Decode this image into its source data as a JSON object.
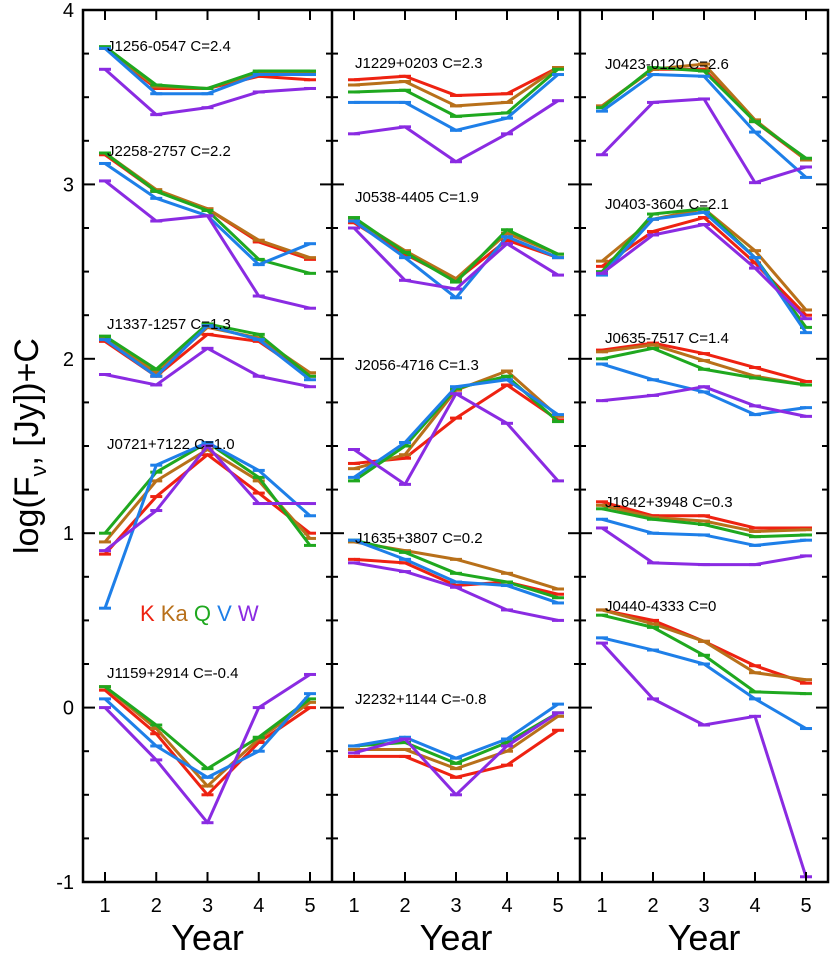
{
  "chart_data": {
    "type": "line",
    "ylabel": "log(F",
    "ylabel_sub": "ν",
    "ylabel_tail": ", [Jy])+C",
    "xlabel": "Year",
    "ylim": [
      -1,
      4
    ],
    "yticks": [
      "-1",
      "0",
      "1",
      "2",
      "3",
      "4"
    ],
    "xticks": [
      "1",
      "2",
      "3",
      "4",
      "5"
    ],
    "band_legend": [
      {
        "label": "K",
        "color": "#ee2211"
      },
      {
        "label": "Ka",
        "color": "#b8701a"
      },
      {
        "label": "Q",
        "color": "#1fa81f"
      },
      {
        "label": "V",
        "color": "#1e7fe8"
      },
      {
        "label": "W",
        "color": "#8a2be2"
      }
    ],
    "panels": [
      {
        "sources": [
          {
            "label": "J1256-0547 C=2.4",
            "series": [
              {
                "band": "K",
                "values": [
                  3.78,
                  3.55,
                  3.55,
                  3.62,
                  3.6
                ]
              },
              {
                "band": "Ka",
                "values": [
                  3.78,
                  3.56,
                  3.55,
                  3.64,
                  3.64
                ]
              },
              {
                "band": "Q",
                "values": [
                  3.79,
                  3.57,
                  3.55,
                  3.65,
                  3.65
                ]
              },
              {
                "band": "V",
                "values": [
                  3.78,
                  3.52,
                  3.52,
                  3.63,
                  3.63
                ]
              },
              {
                "band": "W",
                "values": [
                  3.66,
                  3.4,
                  3.44,
                  3.53,
                  3.55
                ]
              }
            ]
          },
          {
            "label": "J2258-2757 C=2.2",
            "series": [
              {
                "band": "K",
                "values": [
                  3.17,
                  2.96,
                  2.86,
                  2.67,
                  2.57
                ]
              },
              {
                "band": "Ka",
                "values": [
                  3.18,
                  2.97,
                  2.86,
                  2.68,
                  2.58
                ]
              },
              {
                "band": "Q",
                "values": [
                  3.18,
                  2.96,
                  2.85,
                  2.57,
                  2.49
                ]
              },
              {
                "band": "V",
                "values": [
                  3.12,
                  2.92,
                  2.82,
                  2.54,
                  2.66
                ]
              },
              {
                "band": "W",
                "values": [
                  3.02,
                  2.79,
                  2.82,
                  2.36,
                  2.29
                ]
              }
            ]
          },
          {
            "label": "J1337-1257 C=1.3",
            "series": [
              {
                "band": "K",
                "values": [
                  2.1,
                  1.9,
                  2.14,
                  2.1,
                  1.9
                ]
              },
              {
                "band": "Ka",
                "values": [
                  2.12,
                  1.92,
                  2.18,
                  2.12,
                  1.92
                ]
              },
              {
                "band": "Q",
                "values": [
                  2.13,
                  1.94,
                  2.2,
                  2.14,
                  1.9
                ]
              },
              {
                "band": "V",
                "values": [
                  2.11,
                  1.9,
                  2.19,
                  2.11,
                  1.88
                ]
              },
              {
                "band": "W",
                "values": [
                  1.91,
                  1.85,
                  2.06,
                  1.9,
                  1.84
                ]
              }
            ]
          },
          {
            "label": "J0721+7122 C=1.0",
            "series": [
              {
                "band": "K",
                "values": [
                  0.88,
                  1.21,
                  1.45,
                  1.23,
                  1.0
                ]
              },
              {
                "band": "Ka",
                "values": [
                  0.95,
                  1.3,
                  1.48,
                  1.3,
                  0.97
                ]
              },
              {
                "band": "Q",
                "values": [
                  1.0,
                  1.35,
                  1.52,
                  1.32,
                  0.93
                ]
              },
              {
                "band": "V",
                "values": [
                  0.57,
                  1.39,
                  1.52,
                  1.36,
                  1.1
                ]
              },
              {
                "band": "W",
                "values": [
                  0.9,
                  1.13,
                  1.5,
                  1.17,
                  1.17
                ]
              }
            ]
          },
          {
            "label": "J1159+2914 C=-0.4",
            "series": [
              {
                "band": "K",
                "values": [
                  0.1,
                  -0.15,
                  -0.5,
                  -0.2,
                  0.0
                ]
              },
              {
                "band": "Ka",
                "values": [
                  0.12,
                  -0.12,
                  -0.45,
                  -0.18,
                  0.03
                ]
              },
              {
                "band": "Q",
                "values": [
                  0.12,
                  -0.1,
                  -0.35,
                  -0.17,
                  0.05
                ]
              },
              {
                "band": "V",
                "values": [
                  0.05,
                  -0.22,
                  -0.4,
                  -0.25,
                  0.08
                ]
              },
              {
                "band": "W",
                "values": [
                  0.0,
                  -0.3,
                  -0.66,
                  0.0,
                  0.19
                ]
              }
            ]
          }
        ]
      },
      {
        "sources": [
          {
            "label": "J1229+0203 C=2.3",
            "series": [
              {
                "band": "K",
                "values": [
                  3.6,
                  3.62,
                  3.51,
                  3.52,
                  3.67
                ]
              },
              {
                "band": "Ka",
                "values": [
                  3.57,
                  3.59,
                  3.45,
                  3.47,
                  3.67
                ]
              },
              {
                "band": "Q",
                "values": [
                  3.53,
                  3.54,
                  3.39,
                  3.41,
                  3.66
                ]
              },
              {
                "band": "V",
                "values": [
                  3.47,
                  3.47,
                  3.31,
                  3.38,
                  3.63
                ]
              },
              {
                "band": "W",
                "values": [
                  3.29,
                  3.33,
                  3.13,
                  3.29,
                  3.48
                ]
              }
            ]
          },
          {
            "label": "J0538-4405 C=1.9",
            "series": [
              {
                "band": "K",
                "values": [
                  2.78,
                  2.6,
                  2.45,
                  2.68,
                  2.58
                ]
              },
              {
                "band": "Ka",
                "values": [
                  2.8,
                  2.62,
                  2.46,
                  2.72,
                  2.6
                ]
              },
              {
                "band": "Q",
                "values": [
                  2.81,
                  2.61,
                  2.44,
                  2.74,
                  2.6
                ]
              },
              {
                "band": "V",
                "values": [
                  2.79,
                  2.58,
                  2.35,
                  2.7,
                  2.58
                ]
              },
              {
                "band": "W",
                "values": [
                  2.75,
                  2.45,
                  2.4,
                  2.66,
                  2.48
                ]
              }
            ]
          },
          {
            "label": "J2056-4716 C=1.3",
            "series": [
              {
                "band": "K",
                "values": [
                  1.4,
                  1.43,
                  1.66,
                  1.85,
                  1.65
                ]
              },
              {
                "band": "Ka",
                "values": [
                  1.37,
                  1.45,
                  1.82,
                  1.93,
                  1.67
                ]
              },
              {
                "band": "Q",
                "values": [
                  1.3,
                  1.5,
                  1.83,
                  1.9,
                  1.64
                ]
              },
              {
                "band": "V",
                "values": [
                  1.32,
                  1.52,
                  1.84,
                  1.88,
                  1.68
                ]
              },
              {
                "band": "W",
                "values": [
                  1.48,
                  1.28,
                  1.8,
                  1.63,
                  1.3
                ]
              }
            ]
          },
          {
            "label": "J1635+3807 C=0.2",
            "series": [
              {
                "band": "K",
                "values": [
                  0.85,
                  0.83,
                  0.7,
                  0.72,
                  0.65
                ]
              },
              {
                "band": "Ka",
                "values": [
                  0.95,
                  0.9,
                  0.85,
                  0.77,
                  0.68
                ]
              },
              {
                "band": "Q",
                "values": [
                  0.96,
                  0.89,
                  0.77,
                  0.72,
                  0.63
                ]
              },
              {
                "band": "V",
                "values": [
                  0.96,
                  0.85,
                  0.72,
                  0.7,
                  0.6
                ]
              },
              {
                "band": "W",
                "values": [
                  0.83,
                  0.78,
                  0.69,
                  0.56,
                  0.5
                ]
              }
            ]
          },
          {
            "label": "J2232+1144 C=-0.8",
            "series": [
              {
                "band": "K",
                "values": [
                  -0.28,
                  -0.28,
                  -0.4,
                  -0.33,
                  -0.13
                ]
              },
              {
                "band": "Ka",
                "values": [
                  -0.24,
                  -0.24,
                  -0.35,
                  -0.25,
                  -0.05
                ]
              },
              {
                "band": "Q",
                "values": [
                  -0.22,
                  -0.2,
                  -0.32,
                  -0.2,
                  -0.03
                ]
              },
              {
                "band": "V",
                "values": [
                  -0.22,
                  -0.17,
                  -0.29,
                  -0.18,
                  0.02
                ]
              },
              {
                "band": "W",
                "values": [
                  -0.26,
                  -0.18,
                  -0.5,
                  -0.22,
                  -0.03
                ]
              }
            ]
          }
        ]
      },
      {
        "sources": [
          {
            "label": "J0423-0120 C=2.6",
            "series": [
              {
                "band": "K",
                "values": [
                  3.45,
                  3.66,
                  3.66,
                  3.36,
                  3.14
                ]
              },
              {
                "band": "Ka",
                "values": [
                  3.45,
                  3.66,
                  3.69,
                  3.37,
                  3.14
                ]
              },
              {
                "band": "Q",
                "values": [
                  3.44,
                  3.67,
                  3.65,
                  3.36,
                  3.15
                ]
              },
              {
                "band": "V",
                "values": [
                  3.42,
                  3.63,
                  3.62,
                  3.3,
                  3.04
                ]
              },
              {
                "band": "W",
                "values": [
                  3.17,
                  3.47,
                  3.49,
                  3.01,
                  3.1
                ]
              }
            ]
          },
          {
            "label": "J0403-3604 C=2.1",
            "series": [
              {
                "band": "K",
                "values": [
                  2.53,
                  2.73,
                  2.81,
                  2.55,
                  2.25
                ]
              },
              {
                "band": "Ka",
                "values": [
                  2.56,
                  2.8,
                  2.86,
                  2.62,
                  2.28
                ]
              },
              {
                "band": "Q",
                "values": [
                  2.5,
                  2.83,
                  2.86,
                  2.58,
                  2.18
                ]
              },
              {
                "band": "V",
                "values": [
                  2.48,
                  2.8,
                  2.84,
                  2.58,
                  2.15
                ]
              },
              {
                "band": "W",
                "values": [
                  2.49,
                  2.71,
                  2.77,
                  2.52,
                  2.23
                ]
              }
            ]
          },
          {
            "label": "J0635-7517 C=1.4",
            "series": [
              {
                "band": "K",
                "values": [
                  2.05,
                  2.09,
                  2.03,
                  1.95,
                  1.87
                ]
              },
              {
                "band": "Ka",
                "values": [
                  2.04,
                  2.08,
                  1.99,
                  1.9,
                  1.85
                ]
              },
              {
                "band": "Q",
                "values": [
                  2.0,
                  2.06,
                  1.94,
                  1.89,
                  1.85
                ]
              },
              {
                "band": "V",
                "values": [
                  1.97,
                  1.88,
                  1.81,
                  1.68,
                  1.72
                ]
              },
              {
                "band": "W",
                "values": [
                  1.76,
                  1.79,
                  1.84,
                  1.73,
                  1.67
                ]
              }
            ]
          },
          {
            "label": "J1642+3948 C=0.3",
            "series": [
              {
                "band": "K",
                "values": [
                  1.18,
                  1.1,
                  1.1,
                  1.03,
                  1.03
                ]
              },
              {
                "band": "Ka",
                "values": [
                  1.16,
                  1.09,
                  1.07,
                  1.01,
                  1.02
                ]
              },
              {
                "band": "Q",
                "values": [
                  1.14,
                  1.08,
                  1.05,
                  0.98,
                  0.99
                ]
              },
              {
                "band": "V",
                "values": [
                  1.08,
                  1.0,
                  0.99,
                  0.93,
                  0.96
                ]
              },
              {
                "band": "W",
                "values": [
                  1.03,
                  0.83,
                  0.82,
                  0.82,
                  0.87
                ]
              }
            ]
          },
          {
            "label": "J0440-4333 C=0",
            "series": [
              {
                "band": "K",
                "values": [
                  0.56,
                  0.5,
                  0.38,
                  0.24,
                  0.14
                ]
              },
              {
                "band": "Ka",
                "values": [
                  0.56,
                  0.48,
                  0.38,
                  0.2,
                  0.16
                ]
              },
              {
                "band": "Q",
                "values": [
                  0.53,
                  0.46,
                  0.3,
                  0.09,
                  0.08
                ]
              },
              {
                "band": "V",
                "values": [
                  0.4,
                  0.33,
                  0.25,
                  0.05,
                  -0.12
                ]
              },
              {
                "band": "W",
                "values": [
                  0.37,
                  0.05,
                  -0.1,
                  -0.05,
                  -0.97
                ]
              }
            ]
          }
        ]
      }
    ]
  }
}
